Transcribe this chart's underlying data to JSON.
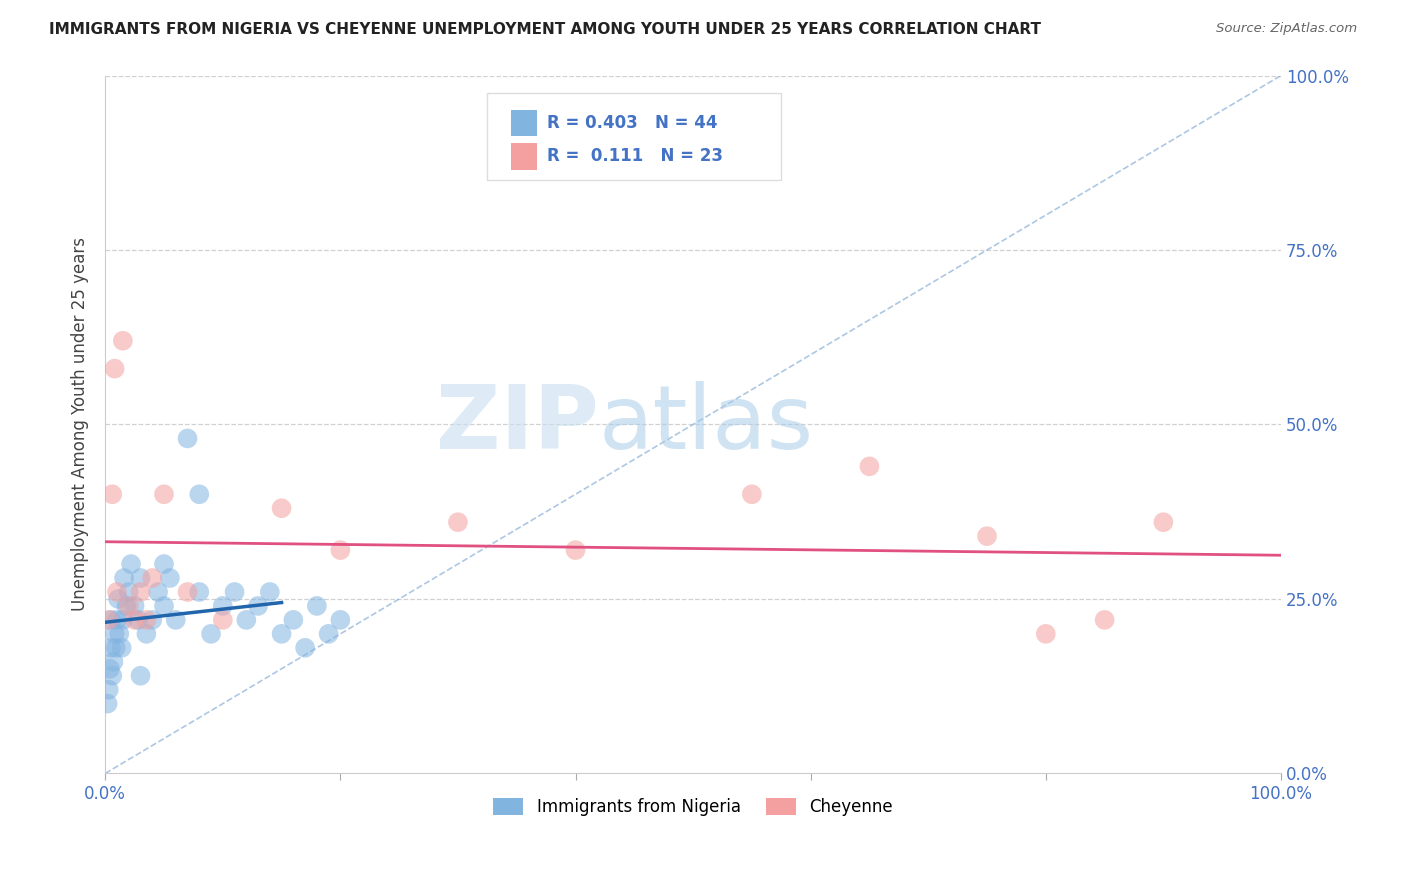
{
  "title": "IMMIGRANTS FROM NIGERIA VS CHEYENNE UNEMPLOYMENT AMONG YOUTH UNDER 25 YEARS CORRELATION CHART",
  "source": "Source: ZipAtlas.com",
  "ylabel": "Unemployment Among Youth under 25 years",
  "ytick_values": [
    0,
    25,
    50,
    75,
    100
  ],
  "xlim": [
    0,
    100
  ],
  "ylim": [
    0,
    100
  ],
  "series1_name": "Immigrants from Nigeria",
  "series1_color": "#82b4e0",
  "series1_R": 0.403,
  "series1_N": 44,
  "series2_name": "Cheyenne",
  "series2_color": "#f4a0a0",
  "series2_R": 0.111,
  "series2_N": 23,
  "trend1_color": "#2166ac",
  "trend2_color": "#e05080",
  "diag_color": "#8ab0d8",
  "background_color": "#ffffff",
  "grid_color": "#cccccc",
  "tick_color": "#4472c4",
  "nigeria_x": [
    0.2,
    0.3,
    0.4,
    0.5,
    0.5,
    0.6,
    0.7,
    0.8,
    0.9,
    1.0,
    1.1,
    1.2,
    1.4,
    1.5,
    1.6,
    1.8,
    2.0,
    2.2,
    2.5,
    2.8,
    3.0,
    3.5,
    4.0,
    4.5,
    5.0,
    5.5,
    6.0,
    7.0,
    8.0,
    9.0,
    10.0,
    11.0,
    12.0,
    13.0,
    14.0,
    15.0,
    16.0,
    17.0,
    18.0,
    19.0,
    20.0,
    8.0,
    5.0,
    3.0
  ],
  "nigeria_y": [
    10,
    12,
    15,
    18,
    22,
    14,
    16,
    20,
    18,
    22,
    25,
    20,
    18,
    22,
    28,
    24,
    26,
    30,
    24,
    22,
    28,
    20,
    22,
    26,
    30,
    28,
    22,
    48,
    26,
    20,
    24,
    26,
    22,
    24,
    26,
    20,
    22,
    18,
    24,
    20,
    22,
    40,
    24,
    14
  ],
  "cheyenne_x": [
    0.3,
    0.6,
    0.8,
    1.0,
    1.5,
    2.0,
    2.5,
    3.0,
    3.5,
    4.0,
    5.0,
    7.0,
    10.0,
    15.0,
    20.0,
    30.0,
    40.0,
    55.0,
    65.0,
    75.0,
    80.0,
    85.0,
    90.0
  ],
  "cheyenne_y": [
    22,
    40,
    58,
    26,
    62,
    24,
    22,
    26,
    22,
    28,
    40,
    26,
    22,
    38,
    32,
    36,
    32,
    40,
    44,
    34,
    20,
    22,
    36
  ]
}
